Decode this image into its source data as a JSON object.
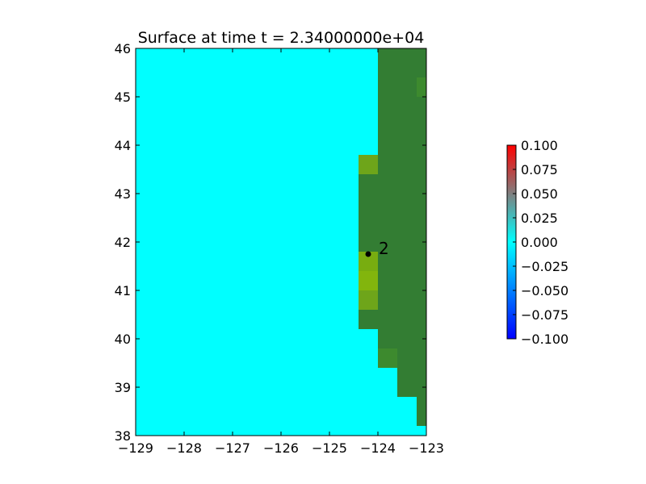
{
  "chart_data": {
    "type": "heatmap",
    "title": "Surface at time t = 2.34000000e+04",
    "xlabel": "",
    "ylabel": "",
    "xlim": [
      -129,
      -123
    ],
    "ylim": [
      38,
      46
    ],
    "x_ticks": [
      -129,
      -128,
      -127,
      -126,
      -125,
      -124,
      -123
    ],
    "y_ticks": [
      38,
      39,
      40,
      41,
      42,
      43,
      44,
      45,
      46
    ],
    "x_tick_labels": [
      "−129",
      "−128",
      "−127",
      "−126",
      "−125",
      "−124",
      "−123"
    ],
    "y_tick_labels": [
      "38",
      "39",
      "40",
      "41",
      "42",
      "43",
      "44",
      "45",
      "46"
    ],
    "grid": false,
    "background_color": "#00ffff",
    "cells": [
      {
        "x0": -124.0,
        "x1": -123.0,
        "y0": 39.6,
        "y1": 46.0,
        "color": "#337d33"
      },
      {
        "x0": -123.6,
        "x1": -123.0,
        "y0": 38.8,
        "y1": 39.6,
        "color": "#337d33"
      },
      {
        "x0": -123.2,
        "x1": -123.0,
        "y0": 38.2,
        "y1": 38.8,
        "color": "#337d33"
      },
      {
        "x0": -123.2,
        "x1": -123.0,
        "y0": 45.0,
        "y1": 45.4,
        "color": "#3d8a2e"
      },
      {
        "x0": -124.0,
        "x1": -123.6,
        "y0": 39.4,
        "y1": 39.8,
        "color": "#3d8a2e"
      },
      {
        "x0": -124.4,
        "x1": -124.0,
        "y0": 40.2,
        "y1": 43.4,
        "color": "#337d33"
      },
      {
        "x0": -124.4,
        "x1": -124.0,
        "y0": 43.4,
        "y1": 43.8,
        "color": "#6ea51a"
      },
      {
        "x0": -124.4,
        "x1": -124.0,
        "y0": 40.6,
        "y1": 41.0,
        "color": "#6ea51a"
      },
      {
        "x0": -124.4,
        "x1": -124.0,
        "y0": 41.0,
        "y1": 41.4,
        "color": "#82b50d"
      },
      {
        "x0": -124.4,
        "x1": -124.0,
        "y0": 41.4,
        "y1": 41.8,
        "color": "#78ad10"
      }
    ],
    "gauges": [
      {
        "label": "2",
        "x": -124.2,
        "y": 41.75
      }
    ],
    "colorbar": {
      "min": -0.1,
      "max": 0.1,
      "colors_bottom_to_top": [
        "#0000ff",
        "#00ffff",
        "#ff0000"
      ],
      "tick_values": [
        -0.1,
        -0.075,
        -0.05,
        -0.025,
        0.0,
        0.025,
        0.05,
        0.075,
        0.1
      ],
      "tick_labels": [
        "−0.100",
        "−0.075",
        "−0.050",
        "−0.025",
        "0.000",
        "0.025",
        "0.050",
        "0.075",
        "0.100"
      ]
    }
  }
}
